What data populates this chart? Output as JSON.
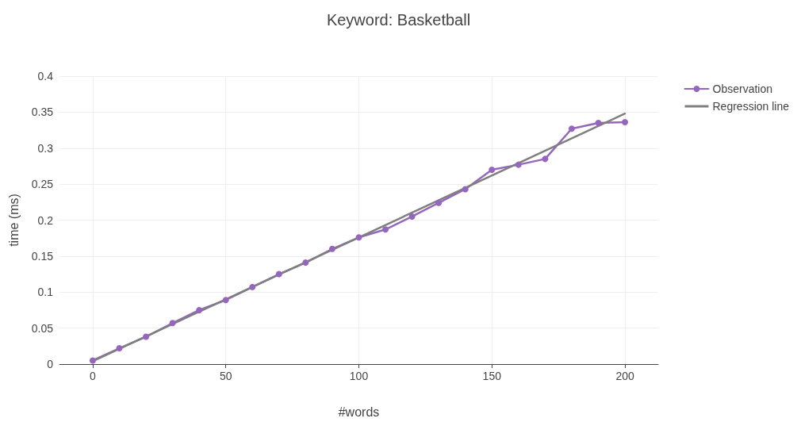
{
  "chart_data": {
    "type": "line",
    "title": "Keyword: Basketball",
    "xlabel": "#words",
    "ylabel": "time (ms)",
    "series": [
      {
        "name": "Observation",
        "color": "#9467bd",
        "marker": "circle",
        "x": [
          0,
          10,
          20,
          30,
          40,
          50,
          60,
          70,
          80,
          90,
          100,
          110,
          120,
          130,
          140,
          150,
          160,
          170,
          180,
          190,
          200
        ],
        "values": [
          0.005,
          0.022,
          0.038,
          0.057,
          0.075,
          0.089,
          0.107,
          0.125,
          0.141,
          0.16,
          0.176,
          0.187,
          0.205,
          0.224,
          0.243,
          0.27,
          0.277,
          0.285,
          0.327,
          0.335,
          0.336
        ]
      },
      {
        "name": "Regression line",
        "color": "#7f7f7f",
        "marker": "none",
        "x": [
          0,
          200
        ],
        "values": [
          0.004,
          0.348
        ]
      }
    ],
    "xlim": [
      -12.5,
      212.5
    ],
    "xticks": [
      0,
      50,
      100,
      150,
      200
    ],
    "ylim": [
      0,
      0.4
    ],
    "yticks": [
      0,
      0.05,
      0.1,
      0.15,
      0.2,
      0.25,
      0.3,
      0.35,
      0.4
    ],
    "grid": true,
    "legend": "top right",
    "line_style": "solid"
  }
}
